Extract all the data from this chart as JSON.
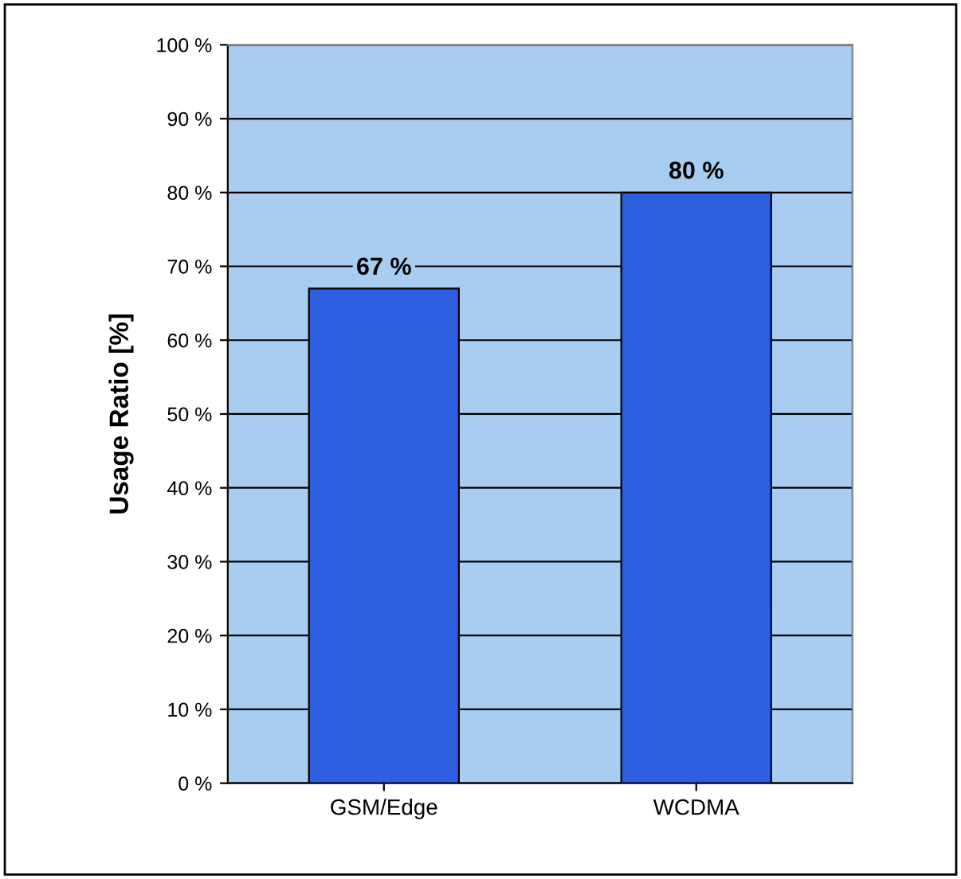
{
  "chart_data": {
    "type": "bar",
    "ylabel": "Usage Ratio [%]",
    "categories": [
      "GSM/Edge",
      "WCDMA"
    ],
    "values": [
      67,
      80
    ],
    "value_labels": [
      "67 %",
      "80 %"
    ],
    "color": "#2d5fe0",
    "ylim": [
      0,
      100
    ],
    "yticks": [
      {
        "value": 0,
        "label": "0 %"
      },
      {
        "value": 10,
        "label": "10 %"
      },
      {
        "value": 20,
        "label": "20 %"
      },
      {
        "value": 30,
        "label": "30 %"
      },
      {
        "value": 40,
        "label": "40 %"
      },
      {
        "value": 50,
        "label": "50 %"
      },
      {
        "value": 60,
        "label": "60 %"
      },
      {
        "value": 70,
        "label": "70 %"
      },
      {
        "value": 80,
        "label": "80 %"
      },
      {
        "value": 90,
        "label": "90 %"
      },
      {
        "value": 100,
        "label": "100 %"
      }
    ],
    "grid": "y",
    "legend": false
  }
}
